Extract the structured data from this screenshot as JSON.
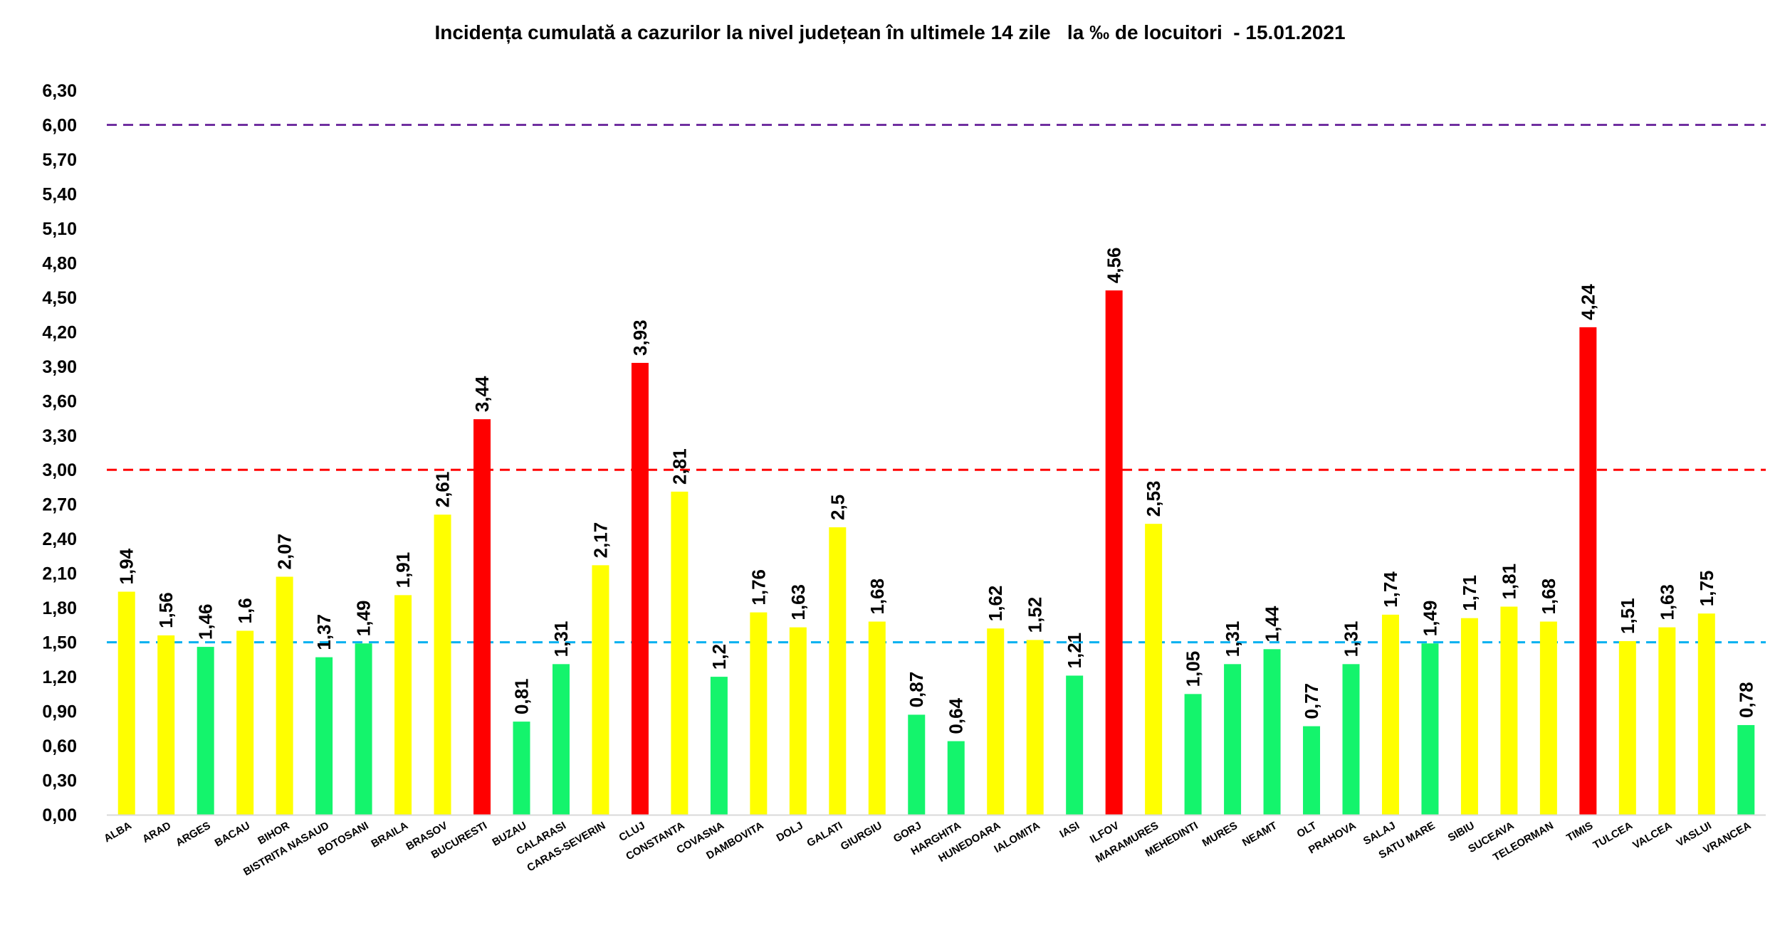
{
  "chart_data": {
    "type": "bar",
    "title": "Incidența cumulată a cazurilor la nivel județean în ultimele 14 zile   la ‰ de locuitori  - 15.01.2021",
    "xlabel": "",
    "ylabel": "",
    "ylim": [
      0,
      6.3
    ],
    "y_ticks": [
      "0,00",
      "0,30",
      "0,60",
      "0,90",
      "1,20",
      "1,50",
      "1,80",
      "2,10",
      "2,40",
      "2,70",
      "3,00",
      "3,30",
      "3,60",
      "3,90",
      "4,20",
      "4,50",
      "4,80",
      "5,10",
      "5,40",
      "5,70",
      "6,00",
      "6,30"
    ],
    "grid": false,
    "legend": "none",
    "categories": [
      "ALBA",
      "ARAD",
      "ARGES",
      "BACAU",
      "BIHOR",
      "BISTRITA NASAUD",
      "BOTOSANI",
      "BRAILA",
      "BRASOV",
      "BUCURESTI",
      "BUZAU",
      "CALARASI",
      "CARAS-SEVERIN",
      "CLUJ",
      "CONSTANTA",
      "COVASNA",
      "DAMBOVITA",
      "DOLJ",
      "GALATI",
      "GIURGIU",
      "GORJ",
      "HARGHITA",
      "HUNEDOARA",
      "IALOMITA",
      "IASI",
      "ILFOV",
      "MARAMURES",
      "MEHEDINTI",
      "MURES",
      "NEAMT",
      "OLT",
      "PRAHOVA",
      "SALAJ",
      "SATU MARE",
      "SIBIU",
      "SUCEAVA",
      "TELEORMAN",
      "TIMIS",
      "TULCEA",
      "VALCEA",
      "VASLUI",
      "VRANCEA"
    ],
    "values": [
      1.94,
      1.56,
      1.46,
      1.6,
      2.07,
      1.37,
      1.49,
      1.91,
      2.61,
      3.44,
      0.81,
      1.31,
      2.17,
      3.93,
      2.81,
      1.2,
      1.76,
      1.63,
      2.5,
      1.68,
      0.87,
      0.64,
      1.62,
      1.52,
      1.21,
      4.56,
      2.53,
      1.05,
      1.31,
      1.44,
      0.77,
      1.31,
      1.74,
      1.49,
      1.71,
      1.81,
      1.68,
      4.24,
      1.51,
      1.63,
      1.75,
      0.78
    ],
    "value_labels": [
      "1,94",
      "1,56",
      "1,46",
      "1,6",
      "2,07",
      "1,37",
      "1,49",
      "1,91",
      "2,61",
      "3,44",
      "0,81",
      "1,31",
      "2,17",
      "3,93",
      "2,81",
      "1,2",
      "1,76",
      "1,63",
      "2,5",
      "1,68",
      "0,87",
      "0,64",
      "1,62",
      "1,52",
      "1,21",
      "4,56",
      "2,53",
      "1,05",
      "1,31",
      "1,44",
      "0,77",
      "1,31",
      "1,74",
      "1,49",
      "1,71",
      "1,81",
      "1,68",
      "4,24",
      "1,51",
      "1,63",
      "1,75",
      "0,78"
    ],
    "bar_colors": [
      "yellow",
      "yellow",
      "green",
      "yellow",
      "yellow",
      "green",
      "green",
      "yellow",
      "yellow",
      "red",
      "green",
      "green",
      "yellow",
      "red",
      "yellow",
      "green",
      "yellow",
      "yellow",
      "yellow",
      "yellow",
      "green",
      "green",
      "yellow",
      "yellow",
      "green",
      "red",
      "yellow",
      "green",
      "green",
      "green",
      "green",
      "green",
      "yellow",
      "green",
      "yellow",
      "yellow",
      "yellow",
      "red",
      "yellow",
      "yellow",
      "yellow",
      "green"
    ],
    "colors": {
      "green": "#14f46c",
      "yellow": "#ffff00",
      "red": "#ff0000"
    },
    "reference_lines": [
      {
        "value": 6.0,
        "color": "#7030a0"
      },
      {
        "value": 3.0,
        "color": "#ff0000"
      },
      {
        "value": 1.5,
        "color": "#00b0f0"
      }
    ]
  }
}
